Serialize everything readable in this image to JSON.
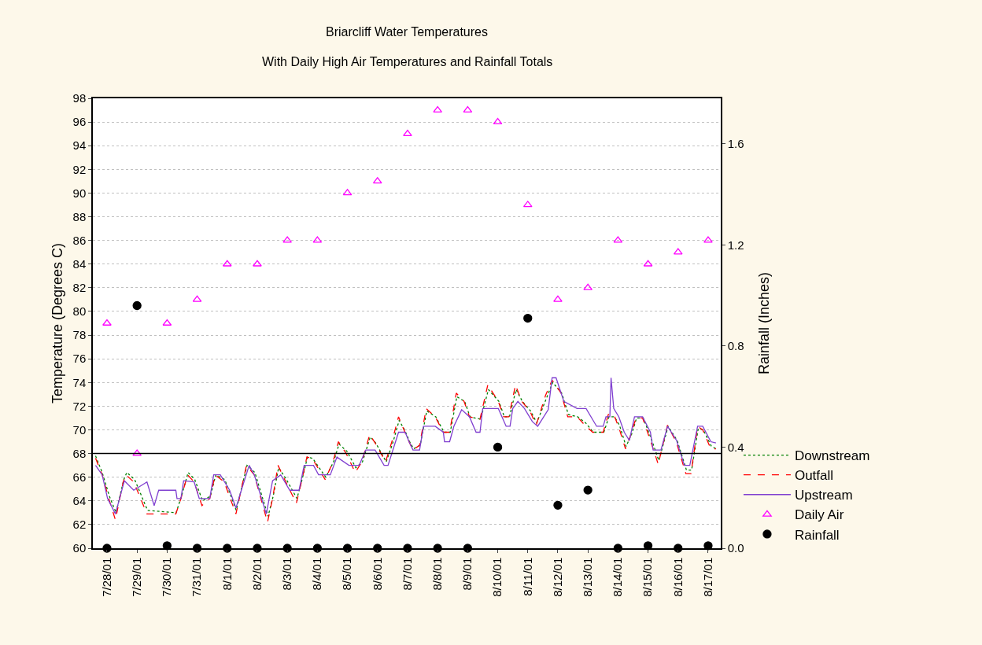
{
  "chart_data": {
    "type": "line",
    "title": "Briarcliff Water Temperatures",
    "subtitle": "With Daily High Air Temperatures and Rainfall Totals",
    "ylabel": "Temperature (Degrees C)",
    "y2label": "Rainfall (Inches)",
    "xlim": [
      "--07-27T12:43",
      "--08-17T10:05"
    ],
    "xticks": [
      {
        "value": "--07-28",
        "label": "7/28/01"
      },
      {
        "value": "--07-29",
        "label": "7/29/01"
      },
      {
        "value": "--07-30",
        "label": "7/30/01"
      },
      {
        "value": "--07-31",
        "label": "7/31/01"
      },
      {
        "value": "--08-01",
        "label": "8/1/01"
      },
      {
        "value": "--08-02",
        "label": "8/2/01"
      },
      {
        "value": "--08-03",
        "label": "8/3/01"
      },
      {
        "value": "--08-04",
        "label": "8/4/01"
      },
      {
        "value": "--08-05",
        "label": "8/5/01"
      },
      {
        "value": "--08-06",
        "label": "8/6/01"
      },
      {
        "value": "--08-07",
        "label": "8/7/01"
      },
      {
        "value": "--08-08",
        "label": "8/8/01"
      },
      {
        "value": "--08-09",
        "label": "8/9/01"
      },
      {
        "value": "--08-10",
        "label": "8/10/01"
      },
      {
        "value": "--08-11",
        "label": "8/11/01"
      },
      {
        "value": "--08-12",
        "label": "8/12/01"
      },
      {
        "value": "--08-13",
        "label": "8/13/01"
      },
      {
        "value": "--08-14",
        "label": "8/14/01"
      },
      {
        "value": "--08-15",
        "label": "8/15/01"
      },
      {
        "value": "--08-16",
        "label": "8/16/01"
      },
      {
        "value": "--08-17",
        "label": "8/17/01"
      }
    ],
    "ylim": [
      60,
      98
    ],
    "yticks": [
      60,
      62,
      64,
      66,
      68,
      70,
      72,
      74,
      76,
      78,
      80,
      82,
      84,
      86,
      88,
      90,
      92,
      94,
      96,
      98
    ],
    "y2lim": [
      0,
      1.78
    ],
    "y2ticks": [
      {
        "value": 0,
        "label": "0.0"
      },
      0.4,
      0.8,
      1.2,
      1.6
    ],
    "grid": "y",
    "legend": "bottom right",
    "ref_lines": [
      {
        "axis": "y",
        "value": 68,
        "color": "#000000"
      }
    ],
    "series": [
      {
        "name": "Downstream",
        "color": "#008000",
        "line_style": "dotted",
        "marker": "none",
        "x": [
          "--07-27T14:53",
          "--07-27T20:10",
          "--07-28T01:55",
          "--07-28T07:12",
          "--07-28T13:26",
          "--07-28T15:50",
          "--07-28T22:05",
          "--07-29T08:24",
          "--07-30T07:12",
          "--07-30T11:31",
          "--07-30T16:48",
          "--07-30T22:05",
          "--07-31T04:19",
          "--07-31T10:34",
          "--07-31T14:53",
          "--07-31T22:05",
          "--08-01T07:12",
          "--08-01T15:50",
          "--08-01T22:05",
          "--08-02T08:38",
          "--08-02T12:43",
          "--08-02T17:02",
          "--08-02T23:17",
          "--08-03T07:41",
          "--08-03T11:46",
          "--08-03T16:05",
          "--08-03T20:10",
          "--08-04T06:43",
          "--08-04T12:58",
          "--08-04T17:17",
          "--08-04T23:31",
          "--08-05T06:43",
          "--08-05T12:00",
          "--08-05T18:14",
          "--08-05T22:34",
          "--08-06T06:58",
          "--08-06T12:14",
          "--08-06T17:17",
          "--08-06T21:36",
          "--08-07T01:41",
          "--08-07T04:48",
          "--08-07T10:05",
          "--08-07T15:22",
          "--08-07T22:34",
          "--08-08T05:02",
          "--08-08T10:05",
          "--08-08T15:22",
          "--08-08T21:36",
          "--08-09T01:55",
          "--08-09T10:19",
          "--08-09T16:34",
          "--08-10T00:58",
          "--08-10T05:17",
          "--08-10T09:22",
          "--08-10T14:38",
          "--08-10T19:41",
          "--08-11T02:10",
          "--08-11T07:12",
          "--08-11T14:38",
          "--08-11T19:55",
          "--08-12T03:07",
          "--08-12T08:24",
          "--08-12T15:50",
          "--08-12T22:05",
          "--08-13T04:19",
          "--08-13T12:43",
          "--08-13T16:48",
          "--08-13T21:07",
          "--08-14T01:12",
          "--08-14T06:29",
          "--08-14T10:48",
          "--08-14T14:53",
          "--08-14T20:10",
          "--08-15T02:24",
          "--08-15T08:38",
          "--08-15T16:05",
          "--08-15T23:17",
          "--08-16T06:43",
          "--08-16T10:48",
          "--08-16T16:05",
          "--08-16T20:10",
          "--08-17T02:38",
          "--08-17T06:43"
        ],
        "values": [
          67.8,
          66.4,
          64.4,
          63.0,
          65.8,
          66.4,
          65.8,
          63.2,
          63.0,
          64.4,
          66.4,
          65.8,
          64.0,
          64.4,
          66.2,
          65.8,
          63.2,
          67.0,
          66.4,
          62.7,
          64.4,
          66.8,
          65.8,
          64.2,
          65.8,
          67.7,
          67.6,
          66.0,
          67.3,
          68.8,
          68.2,
          66.8,
          67.3,
          69.4,
          68.9,
          67.3,
          68.9,
          70.8,
          70.0,
          69.0,
          68.4,
          68.7,
          71.6,
          71.1,
          69.8,
          69.8,
          72.8,
          72.4,
          71.1,
          70.9,
          73.4,
          72.4,
          71.1,
          71.1,
          73.4,
          72.4,
          71.6,
          70.6,
          72.6,
          74.0,
          73.1,
          71.3,
          71.1,
          70.6,
          69.8,
          69.8,
          71.1,
          71.1,
          70.4,
          68.6,
          69.6,
          71.0,
          71.0,
          69.3,
          67.4,
          70.3,
          69.1,
          66.6,
          66.6,
          70.1,
          70.0,
          68.6,
          68.4
        ]
      },
      {
        "name": "Outfall",
        "color": "#ff0000",
        "line_style": "dashed",
        "marker": "none",
        "x": [
          "--07-27T14:53",
          "--07-27T20:10",
          "--07-28T01:26",
          "--07-28T06:43",
          "--07-28T12:58",
          "--07-28T15:07",
          "--07-28T21:22",
          "--07-29T07:55",
          "--07-30T06:58",
          "--07-30T11:02",
          "--07-30T16:19",
          "--07-30T21:36",
          "--07-31T03:50",
          "--07-31T10:05",
          "--07-31T14:24",
          "--07-31T21:36",
          "--08-01T06:58",
          "--08-01T15:22",
          "--08-01T21:36",
          "--08-02T08:10",
          "--08-02T12:14",
          "--08-02T16:34",
          "--08-02T22:48",
          "--08-03T07:12",
          "--08-03T11:17",
          "--08-03T15:36",
          "--08-03T19:41",
          "--08-04T06:14",
          "--08-04T12:29",
          "--08-04T16:48",
          "--08-04T23:02",
          "--08-05T06:14",
          "--08-05T11:31",
          "--08-05T17:46",
          "--08-05T22:05",
          "--08-06T06:29",
          "--08-06T11:46",
          "--08-06T16:48",
          "--08-06T21:07",
          "--08-07T01:12",
          "--08-07T04:19",
          "--08-07T09:36",
          "--08-07T14:53",
          "--08-07T22:05",
          "--08-08T04:34",
          "--08-08T09:36",
          "--08-08T14:53",
          "--08-08T21:07",
          "--08-09T01:26",
          "--08-09T09:50",
          "--08-09T16:05",
          "--08-10T00:29",
          "--08-10T04:48",
          "--08-10T08:53",
          "--08-10T14:10",
          "--08-10T19:12",
          "--08-11T01:41",
          "--08-11T06:43",
          "--08-11T14:10",
          "--08-11T19:26",
          "--08-12T02:38",
          "--08-12T07:55",
          "--08-12T15:22",
          "--08-12T21:36",
          "--08-13T03:50",
          "--08-13T12:14",
          "--08-13T16:19",
          "--08-13T20:38",
          "--08-14T00:43",
          "--08-14T06:00",
          "--08-14T10:19",
          "--08-14T14:24",
          "--08-14T19:41",
          "--08-15T01:55",
          "--08-15T08:10",
          "--08-15T15:36",
          "--08-15T22:48",
          "--08-16T06:14",
          "--08-16T10:19",
          "--08-16T15:36",
          "--08-16T19:41",
          "--08-17T02:10",
          "--08-17T06:14"
        ],
        "values": [
          67.6,
          66.2,
          64.2,
          62.4,
          65.6,
          66.2,
          65.6,
          62.9,
          62.9,
          64.2,
          66.2,
          65.6,
          63.6,
          64.2,
          66.2,
          65.6,
          62.9,
          67.0,
          66.2,
          62.2,
          64.2,
          67.0,
          65.6,
          63.8,
          65.6,
          67.7,
          67.6,
          65.8,
          67.3,
          69.0,
          68.0,
          66.4,
          67.3,
          69.6,
          68.9,
          67.3,
          69.1,
          71.1,
          70.0,
          69.0,
          68.3,
          68.7,
          71.8,
          71.1,
          69.8,
          69.8,
          73.1,
          72.4,
          71.1,
          70.9,
          73.8,
          72.4,
          71.1,
          71.1,
          73.8,
          72.4,
          71.6,
          70.4,
          72.9,
          74.2,
          73.1,
          71.1,
          71.1,
          70.4,
          69.8,
          69.8,
          71.3,
          71.3,
          70.2,
          68.4,
          69.6,
          71.0,
          71.0,
          69.1,
          67.1,
          70.4,
          68.9,
          66.3,
          66.3,
          70.3,
          70.0,
          68.4,
          68.4
        ]
      },
      {
        "name": "Upstream",
        "color": "#8040d0",
        "line_style": "solid",
        "marker": "none",
        "x": [
          "--07-27T14:53",
          "--07-27T20:10",
          "--07-28T00:29",
          "--07-28T06:43",
          "--07-28T13:55",
          "--07-28T21:22",
          "--07-29T07:55",
          "--07-29T13:41",
          "--07-29T17:17",
          "--07-30T06:58",
          "--07-30T07:55",
          "--07-30T11:02",
          "--07-30T13:12",
          "--07-30T21:36",
          "--07-31T01:41",
          "--07-31T10:05",
          "--07-31T13:12",
          "--07-31T18:29",
          "--08-01T01:55",
          "--08-01T06:58",
          "--08-01T11:17",
          "--08-01T17:31",
          "--08-01T21:36",
          "--08-02T07:12",
          "--08-02T12:14",
          "--08-02T18:43",
          "--08-03T01:55",
          "--08-03T09:22",
          "--08-03T13:26",
          "--08-03T20:53",
          "--08-04T00:58",
          "--08-04T10:19",
          "--08-04T15:36",
          "--08-05T01:12",
          "--08-05T09:22",
          "--08-05T14:38",
          "--08-05T22:05",
          "--08-06T05:17",
          "--08-06T08:24",
          "--08-06T16:48",
          "--08-06T22:05",
          "--08-07T01:12",
          "--08-07T04:19",
          "--08-07T09:36",
          "--08-07T12:43",
          "--08-07T22:05",
          "--08-08T04:34",
          "--08-08T05:31",
          "--08-08T09:36",
          "--08-08T12:58",
          "--08-08T19:12",
          "--08-09T01:26",
          "--08-09T06:43",
          "--08-09T09:50",
          "--08-09T12:00",
          "--08-10T00:29",
          "--08-10T06:43",
          "--08-10T09:50",
          "--08-10T12:00",
          "--08-10T16:05",
          "--08-10T21:22",
          "--08-11T03:36",
          "--08-11T07:55",
          "--08-11T16:19",
          "--08-11T19:26",
          "--08-11T22:34",
          "--08-12T04:48",
          "--08-12T15:22",
          "--08-12T22:34",
          "--08-13T06:58",
          "--08-13T12:14",
          "--08-13T14:24",
          "--08-13T17:31",
          "--08-13T18:29",
          "--08-13T20:38",
          "--08-14T00:43",
          "--08-14T05:02",
          "--08-14T09:07",
          "--08-14T13:12",
          "--08-14T19:41",
          "--08-15T01:55",
          "--08-15T04:05",
          "--08-15T10:19",
          "--08-15T15:36",
          "--08-15T22:48",
          "--08-16T05:02",
          "--08-16T09:22",
          "--08-16T15:36",
          "--08-16T19:41",
          "--08-17T02:10",
          "--08-17T06:14"
        ],
        "values": [
          67.0,
          66.2,
          64.2,
          62.9,
          65.7,
          64.9,
          65.6,
          63.6,
          64.9,
          64.9,
          64.2,
          64.2,
          65.7,
          65.6,
          64.2,
          64.2,
          66.2,
          66.2,
          64.9,
          63.4,
          64.9,
          67.0,
          66.2,
          62.9,
          65.7,
          66.2,
          64.9,
          64.9,
          67.0,
          67.0,
          66.2,
          66.2,
          67.7,
          67.0,
          67.0,
          68.3,
          68.3,
          67.0,
          67.0,
          69.8,
          69.8,
          69.0,
          68.3,
          68.3,
          70.3,
          70.3,
          69.8,
          69.0,
          69.0,
          70.3,
          71.7,
          71.1,
          69.8,
          69.8,
          71.8,
          71.8,
          70.3,
          70.3,
          71.8,
          72.4,
          71.8,
          70.7,
          70.3,
          71.7,
          74.4,
          74.4,
          72.4,
          71.8,
          71.8,
          70.3,
          70.3,
          71.1,
          71.1,
          74.4,
          71.8,
          71.1,
          69.8,
          69.1,
          71.1,
          71.1,
          69.8,
          68.3,
          68.3,
          70.3,
          69.1,
          67.0,
          67.0,
          70.3,
          70.3,
          69.0,
          68.9
        ]
      },
      {
        "name": "Daily Air",
        "type": "scatter",
        "color": "#ff00ff",
        "marker": "triangle",
        "x": [
          "--07-28",
          "--07-29",
          "--07-30",
          "--07-31",
          "--08-01",
          "--08-02",
          "--08-03",
          "--08-04",
          "--08-05",
          "--08-06",
          "--08-07",
          "--08-08",
          "--08-09",
          "--08-10",
          "--08-11",
          "--08-12",
          "--08-13",
          "--08-14",
          "--08-15",
          "--08-16",
          "--08-17"
        ],
        "values": [
          79,
          68,
          79,
          81,
          84,
          84,
          86,
          86,
          90,
          91,
          95,
          97,
          97,
          96,
          89,
          81,
          82,
          86,
          84,
          85,
          86
        ]
      },
      {
        "name": "Rainfall",
        "type": "scatter",
        "axis": "y2",
        "color": "#000000",
        "marker": "circle",
        "x": [
          "--07-28",
          "--07-29",
          "--07-30",
          "--07-31",
          "--08-01",
          "--08-02",
          "--08-03",
          "--08-04",
          "--08-05",
          "--08-06",
          "--08-07",
          "--08-08",
          "--08-09",
          "--08-10",
          "--08-11",
          "--08-12",
          "--08-13",
          "--08-14",
          "--08-15",
          "--08-16",
          "--08-17"
        ],
        "values": [
          0,
          0.96,
          0.01,
          0,
          0,
          0,
          0,
          0,
          0,
          0,
          0,
          0,
          0,
          0.4,
          0.91,
          0.17,
          0.23,
          0,
          0.01,
          0,
          0.01
        ]
      }
    ]
  }
}
